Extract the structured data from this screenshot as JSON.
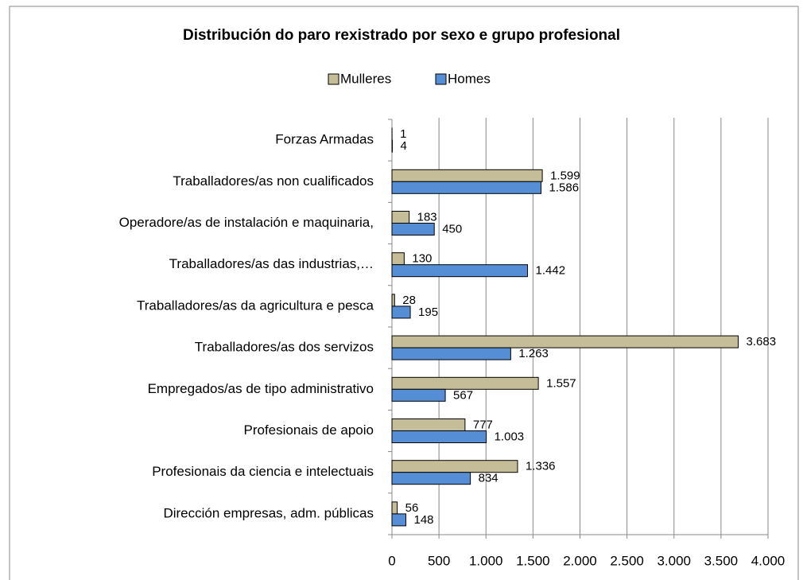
{
  "chart_data": {
    "type": "bar",
    "orientation": "horizontal",
    "title": "Distribución do paro rexistrado por sexo e grupo profesional",
    "categories": [
      "Forzas Armadas",
      "Traballadores/as non cualificados",
      "Operadore/as de instalación e maquinaria,",
      "Traballadores/as das industrias,…",
      "Traballadores/as da  agricultura e  pesca",
      "Traballadores/as  dos servizos",
      "Empregados/as de tipo administrativo",
      "Profesionais de apoio",
      "Profesionais  da ciencia e intelectuais",
      "Dirección  empresas, adm. públicas"
    ],
    "series": [
      {
        "name": "Mulleres",
        "color": "#c4bd97",
        "values": [
          1,
          1599,
          183,
          130,
          28,
          3683,
          1557,
          777,
          1336,
          56
        ],
        "value_labels": [
          "1",
          "1.599",
          "183",
          "130",
          "28",
          "3.683",
          "1.557",
          "777",
          "1.336",
          "56"
        ]
      },
      {
        "name": "Homes",
        "color": "#558ed5",
        "values": [
          4,
          1586,
          450,
          1442,
          195,
          1263,
          567,
          1003,
          834,
          148
        ],
        "value_labels": [
          "4",
          "1.586",
          "450",
          "1.442",
          "195",
          "1.263",
          "567",
          "1.003",
          "834",
          "148"
        ]
      }
    ],
    "xlim": [
      0,
      4000
    ],
    "xticks": [
      0,
      500,
      {
        "value": 1000,
        "label": "1.000"
      },
      {
        "value": 1500,
        "label": "1.500"
      },
      {
        "value": 2000,
        "label": "2.000"
      },
      {
        "value": 2500,
        "label": "2.500"
      },
      {
        "value": 3000,
        "label": "3.000"
      },
      {
        "value": 3500,
        "label": "3.500"
      },
      {
        "value": 4000,
        "label": "4.000"
      }
    ],
    "grid": true,
    "legend": "top"
  }
}
